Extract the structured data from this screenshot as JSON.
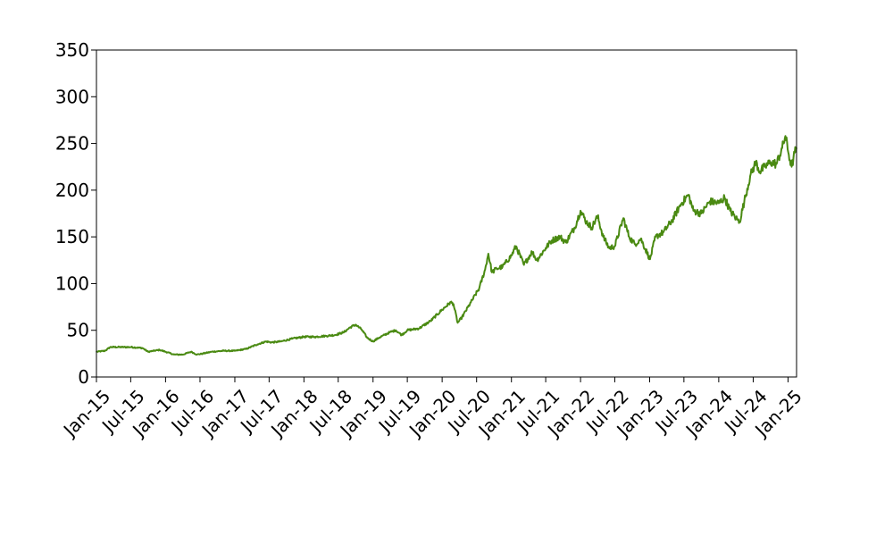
{
  "chart_data": {
    "type": "line",
    "title": "",
    "xlabel": "",
    "ylabel": "",
    "ylim": [
      0,
      350
    ],
    "yticks": [
      0,
      50,
      100,
      150,
      200,
      250,
      300,
      350
    ],
    "xlim": [
      "2015-01-01",
      "2025-02-15"
    ],
    "xticks": [
      {
        "date": "2015-01-01",
        "label": "Jan-15"
      },
      {
        "date": "2015-07-01",
        "label": "Jul-15"
      },
      {
        "date": "2016-01-01",
        "label": "Jan-16"
      },
      {
        "date": "2016-07-01",
        "label": "Jul-16"
      },
      {
        "date": "2017-01-01",
        "label": "Jan-17"
      },
      {
        "date": "2017-07-01",
        "label": "Jul-17"
      },
      {
        "date": "2018-01-01",
        "label": "Jan-18"
      },
      {
        "date": "2018-07-01",
        "label": "Jul-18"
      },
      {
        "date": "2019-01-01",
        "label": "Jan-19"
      },
      {
        "date": "2019-07-01",
        "label": "Jul-19"
      },
      {
        "date": "2020-01-01",
        "label": "Jan-20"
      },
      {
        "date": "2020-07-01",
        "label": "Jul-20"
      },
      {
        "date": "2021-01-01",
        "label": "Jan-21"
      },
      {
        "date": "2021-07-01",
        "label": "Jul-21"
      },
      {
        "date": "2022-01-01",
        "label": "Jan-22"
      },
      {
        "date": "2022-07-01",
        "label": "Jul-22"
      },
      {
        "date": "2023-01-01",
        "label": "Jan-23"
      },
      {
        "date": "2023-07-01",
        "label": "Jul-23"
      },
      {
        "date": "2024-01-01",
        "label": "Jan-24"
      },
      {
        "date": "2024-07-01",
        "label": "Jul-24"
      },
      {
        "date": "2025-01-01",
        "label": "Jan-25"
      }
    ],
    "grid": false,
    "legend": "none",
    "series": [
      {
        "color": "#4a8a12",
        "points": [
          [
            "2015-01-02",
            27
          ],
          [
            "2015-02-15",
            28
          ],
          [
            "2015-03-15",
            32
          ],
          [
            "2015-05-01",
            32
          ],
          [
            "2015-07-01",
            32
          ],
          [
            "2015-09-01",
            31
          ],
          [
            "2015-10-01",
            27
          ],
          [
            "2015-12-01",
            29
          ],
          [
            "2016-01-01",
            27
          ],
          [
            "2016-02-15",
            24
          ],
          [
            "2016-04-01",
            24
          ],
          [
            "2016-05-15",
            27
          ],
          [
            "2016-06-15",
            24
          ],
          [
            "2016-07-15",
            25
          ],
          [
            "2016-09-01",
            27
          ],
          [
            "2016-11-01",
            28
          ],
          [
            "2017-01-01",
            28
          ],
          [
            "2017-03-01",
            30
          ],
          [
            "2017-05-01",
            35
          ],
          [
            "2017-06-15",
            38
          ],
          [
            "2017-07-15",
            37
          ],
          [
            "2017-09-01",
            38
          ],
          [
            "2017-11-01",
            41
          ],
          [
            "2018-01-01",
            43
          ],
          [
            "2018-03-01",
            43
          ],
          [
            "2018-05-01",
            44
          ],
          [
            "2018-06-15",
            45
          ],
          [
            "2018-08-01",
            48
          ],
          [
            "2018-09-01",
            53
          ],
          [
            "2018-10-01",
            56
          ],
          [
            "2018-11-01",
            51
          ],
          [
            "2018-12-01",
            42
          ],
          [
            "2019-01-01",
            38
          ],
          [
            "2019-02-01",
            42
          ],
          [
            "2019-04-01",
            48
          ],
          [
            "2019-05-01",
            50
          ],
          [
            "2019-06-01",
            45
          ],
          [
            "2019-07-01",
            50
          ],
          [
            "2019-09-01",
            52
          ],
          [
            "2019-11-01",
            60
          ],
          [
            "2020-01-01",
            72
          ],
          [
            "2020-02-15",
            80
          ],
          [
            "2020-03-01",
            78
          ],
          [
            "2020-03-23",
            58
          ],
          [
            "2020-04-15",
            64
          ],
          [
            "2020-06-01",
            80
          ],
          [
            "2020-07-15",
            95
          ],
          [
            "2020-08-15",
            115
          ],
          [
            "2020-09-01",
            132
          ],
          [
            "2020-09-20",
            112
          ],
          [
            "2020-10-15",
            116
          ],
          [
            "2020-11-15",
            118
          ],
          [
            "2021-01-01",
            130
          ],
          [
            "2021-01-25",
            140
          ],
          [
            "2021-03-08",
            120
          ],
          [
            "2021-04-20",
            134
          ],
          [
            "2021-05-15",
            125
          ],
          [
            "2021-07-01",
            138
          ],
          [
            "2021-08-01",
            146
          ],
          [
            "2021-09-15",
            150
          ],
          [
            "2021-10-15",
            144
          ],
          [
            "2021-12-01",
            160
          ],
          [
            "2022-01-01",
            178
          ],
          [
            "2022-02-01",
            166
          ],
          [
            "2022-03-01",
            160
          ],
          [
            "2022-04-01",
            172
          ],
          [
            "2022-05-01",
            150
          ],
          [
            "2022-06-01",
            138
          ],
          [
            "2022-07-01",
            140
          ],
          [
            "2022-08-15",
            170
          ],
          [
            "2022-09-15",
            150
          ],
          [
            "2022-10-15",
            142
          ],
          [
            "2022-11-15",
            148
          ],
          [
            "2023-01-03",
            126
          ],
          [
            "2023-02-01",
            150
          ],
          [
            "2023-03-15",
            155
          ],
          [
            "2023-05-01",
            168
          ],
          [
            "2023-06-15",
            185
          ],
          [
            "2023-07-25",
            195
          ],
          [
            "2023-08-20",
            178
          ],
          [
            "2023-10-01",
            175
          ],
          [
            "2023-11-15",
            188
          ],
          [
            "2024-01-01",
            186
          ],
          [
            "2024-02-01",
            192
          ],
          [
            "2024-03-01",
            178
          ],
          [
            "2024-04-01",
            170
          ],
          [
            "2024-04-20",
            166
          ],
          [
            "2024-05-15",
            188
          ],
          [
            "2024-06-15",
            215
          ],
          [
            "2024-07-15",
            230
          ],
          [
            "2024-08-05",
            220
          ],
          [
            "2024-09-01",
            225
          ],
          [
            "2024-10-01",
            230
          ],
          [
            "2024-11-01",
            228
          ],
          [
            "2024-12-01",
            245
          ],
          [
            "2024-12-18",
            258
          ],
          [
            "2025-01-05",
            238
          ],
          [
            "2025-01-20",
            225
          ],
          [
            "2025-02-05",
            240
          ],
          [
            "2025-02-14",
            245
          ]
        ]
      }
    ]
  }
}
